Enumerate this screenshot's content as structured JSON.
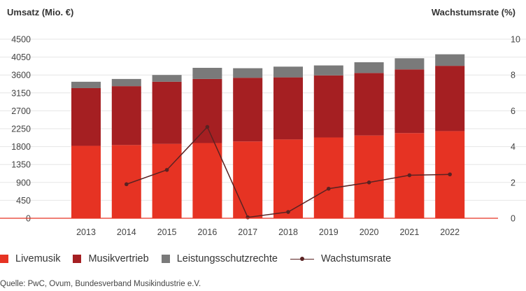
{
  "chart_data": {
    "type": "bar",
    "stacked": true,
    "ylabel_left": "Umsatz (Mio. €)",
    "ylabel_right": "Wachstumsrate (%)",
    "categories": [
      "2013",
      "2014",
      "2015",
      "2016",
      "2017",
      "2018",
      "2019",
      "2020",
      "2021",
      "2022"
    ],
    "ylim": [
      0,
      4500
    ],
    "yticks": [
      0,
      450,
      900,
      1350,
      1800,
      2250,
      2700,
      3150,
      3600,
      4050,
      4500
    ],
    "y2lim": [
      0,
      10
    ],
    "y2ticks": [
      0,
      2,
      4,
      6,
      8,
      10
    ],
    "grid": true,
    "legend_position": "bottom",
    "series": [
      {
        "name": "Livemusik",
        "color": "#e63323",
        "values": [
          1820,
          1840,
          1870,
          1890,
          1930,
          1980,
          2030,
          2080,
          2140,
          2190
        ]
      },
      {
        "name": "Musikvertrieb",
        "color": "#a51f22",
        "values": [
          1450,
          1480,
          1560,
          1610,
          1600,
          1560,
          1560,
          1570,
          1600,
          1640
        ]
      },
      {
        "name": "Leistungsschutzrechte",
        "color": "#7a7a7a",
        "values": [
          160,
          180,
          170,
          280,
          240,
          270,
          250,
          270,
          280,
          290
        ]
      }
    ],
    "line_series": {
      "name": "Wachstumsrate",
      "color": "#5a2222",
      "axis": "right",
      "x": [
        "2014",
        "2015",
        "2016",
        "2017",
        "2018",
        "2019",
        "2020",
        "2021",
        "2022"
      ],
      "values": [
        1.9,
        2.7,
        5.1,
        0.05,
        0.35,
        1.65,
        2.0,
        2.4,
        2.45
      ]
    }
  },
  "legend": {
    "items": [
      {
        "label": "Livemusik",
        "color": "#e63323"
      },
      {
        "label": "Musikvertrieb",
        "color": "#a51f22"
      },
      {
        "label": "Leistungsschutzrechte",
        "color": "#7a7a7a"
      },
      {
        "label": "Wachstumsrate",
        "color": "#5a2222"
      }
    ]
  },
  "source": "Quelle: PwC, Ovum, Bundesverband Musikindustrie e.V."
}
